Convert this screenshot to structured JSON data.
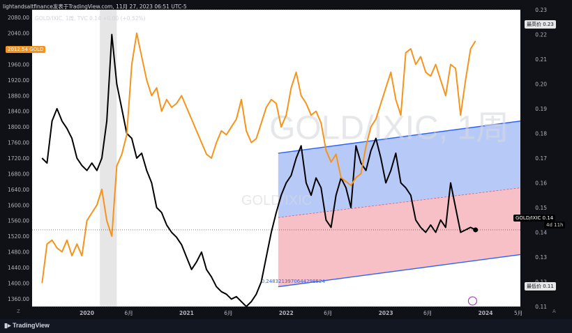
{
  "header": {
    "watermark_line": "lightandsaltfinance发表于TradingView.com, 11月 27, 2023 06:51 UTC-5",
    "symbol_line": "GOLD/IXIC, 1周, TVC  0.14  +0.00 (+0.52%)",
    "gold_tag_value": "2012.54",
    "gold_tag_label": "GOLD"
  },
  "watermark": {
    "big": "GOLD/IXIC, 1周",
    "small": "GOLD/IXIC"
  },
  "right_tags": {
    "high_label": "最高价",
    "high_value": "0.23",
    "low_label": "最低价",
    "low_value": "0.11",
    "current_label": "GOLD/IXIC",
    "current_value": "0.14",
    "countdown": "4d 11h"
  },
  "annotation": "0.2483213970644298524",
  "footer": {
    "brand": "TradingView",
    "left_corner": "Z",
    "right_corner": "A"
  },
  "colors": {
    "background": "#0f1117",
    "ratio_line": "#000000",
    "gold_line": "#f7931a",
    "channel_upper_fill": "#b7c9f7",
    "channel_lower_fill": "#f6c0c6",
    "channel_border": "#2962ff",
    "highlight_band": "#e6e6e6",
    "axis_text": "#b2b5be"
  },
  "chart_data": {
    "type": "line",
    "x_ticks": [
      "2020",
      "6月",
      "2021",
      "6月",
      "2022",
      "6月",
      "2023",
      "6月",
      "2024",
      "5月"
    ],
    "left_axis": {
      "label": "GOLD",
      "ticks": [
        1360,
        1400,
        1440,
        1480,
        1520,
        1560,
        1600,
        1640,
        1680,
        1720,
        1760,
        1800,
        1840,
        1880,
        1920,
        1960,
        2000,
        2040,
        2080
      ],
      "ylim": [
        1340,
        2100
      ]
    },
    "right_axis": {
      "label": "GOLD/IXIC",
      "ticks": [
        0.11,
        0.12,
        0.13,
        0.14,
        0.15,
        0.16,
        0.17,
        0.18,
        0.19,
        0.2,
        0.21,
        0.22,
        0.23
      ],
      "ylim": [
        0.11,
        0.23
      ]
    },
    "series": [
      {
        "name": "GOLD/IXIC",
        "axis": "right",
        "x": [
          2019.55,
          2019.6,
          2019.65,
          2019.7,
          2019.75,
          2019.8,
          2019.85,
          2019.9,
          2019.95,
          2020.0,
          2020.05,
          2020.1,
          2020.15,
          2020.2,
          2020.25,
          2020.3,
          2020.35,
          2020.4,
          2020.45,
          2020.5,
          2020.55,
          2020.6,
          2020.65,
          2020.7,
          2020.75,
          2020.8,
          2020.85,
          2020.9,
          2020.95,
          2021.0,
          2021.05,
          2021.1,
          2021.15,
          2021.2,
          2021.25,
          2021.3,
          2021.35,
          2021.4,
          2021.45,
          2021.5,
          2021.55,
          2021.6,
          2021.65,
          2021.7,
          2021.75,
          2021.8,
          2021.85,
          2021.9,
          2021.95,
          2022.0,
          2022.05,
          2022.1,
          2022.15,
          2022.2,
          2022.25,
          2022.3,
          2022.35,
          2022.4,
          2022.45,
          2022.5,
          2022.55,
          2022.6,
          2022.65,
          2022.7,
          2022.75,
          2022.8,
          2022.85,
          2022.9,
          2022.95,
          2023.0,
          2023.05,
          2023.1,
          2023.15,
          2023.2,
          2023.25,
          2023.3,
          2023.35,
          2023.4,
          2023.45,
          2023.5,
          2023.55,
          2023.6,
          2023.65,
          2023.7,
          2023.75,
          2023.8,
          2023.85,
          2023.9
        ],
        "values": [
          0.17,
          0.168,
          0.185,
          0.19,
          0.185,
          0.182,
          0.178,
          0.17,
          0.167,
          0.165,
          0.168,
          0.165,
          0.17,
          0.185,
          0.22,
          0.2,
          0.19,
          0.18,
          0.178,
          0.17,
          0.172,
          0.165,
          0.16,
          0.15,
          0.148,
          0.143,
          0.14,
          0.138,
          0.135,
          0.13,
          0.125,
          0.128,
          0.132,
          0.125,
          0.122,
          0.118,
          0.116,
          0.115,
          0.113,
          0.114,
          0.112,
          0.11,
          0.112,
          0.115,
          0.12,
          0.13,
          0.14,
          0.148,
          0.155,
          0.16,
          0.163,
          0.17,
          0.175,
          0.16,
          0.155,
          0.162,
          0.158,
          0.145,
          0.142,
          0.155,
          0.162,
          0.158,
          0.15,
          0.175,
          0.168,
          0.165,
          0.173,
          0.178,
          0.17,
          0.16,
          0.165,
          0.172,
          0.16,
          0.158,
          0.155,
          0.145,
          0.142,
          0.14,
          0.143,
          0.14,
          0.145,
          0.142,
          0.16,
          0.15,
          0.14,
          0.141,
          0.142,
          0.141
        ]
      },
      {
        "name": "GOLD",
        "axis": "left",
        "x": [
          2019.55,
          2019.6,
          2019.65,
          2019.7,
          2019.75,
          2019.8,
          2019.85,
          2019.9,
          2019.95,
          2020.0,
          2020.05,
          2020.1,
          2020.15,
          2020.2,
          2020.25,
          2020.3,
          2020.35,
          2020.4,
          2020.45,
          2020.5,
          2020.55,
          2020.6,
          2020.65,
          2020.7,
          2020.75,
          2020.8,
          2020.85,
          2020.9,
          2020.95,
          2021.0,
          2021.05,
          2021.1,
          2021.15,
          2021.2,
          2021.25,
          2021.3,
          2021.35,
          2021.4,
          2021.45,
          2021.5,
          2021.55,
          2021.6,
          2021.65,
          2021.7,
          2021.75,
          2021.8,
          2021.85,
          2021.9,
          2021.95,
          2022.0,
          2022.05,
          2022.1,
          2022.15,
          2022.2,
          2022.25,
          2022.3,
          2022.35,
          2022.4,
          2022.45,
          2022.5,
          2022.55,
          2022.6,
          2022.65,
          2022.7,
          2022.75,
          2022.8,
          2022.85,
          2022.9,
          2022.95,
          2023.0,
          2023.05,
          2023.1,
          2023.15,
          2023.2,
          2023.25,
          2023.3,
          2023.35,
          2023.4,
          2023.45,
          2023.5,
          2023.55,
          2023.6,
          2023.65,
          2023.7,
          2023.75,
          2023.8,
          2023.85,
          2023.9
        ],
        "values": [
          1400,
          1500,
          1510,
          1490,
          1480,
          1510,
          1470,
          1500,
          1470,
          1560,
          1580,
          1600,
          1640,
          1560,
          1520,
          1700,
          1730,
          1780,
          1960,
          2040,
          1980,
          1920,
          1880,
          1900,
          1840,
          1870,
          1850,
          1860,
          1880,
          1850,
          1820,
          1790,
          1760,
          1730,
          1720,
          1760,
          1790,
          1780,
          1800,
          1820,
          1870,
          1790,
          1760,
          1770,
          1810,
          1850,
          1870,
          1860,
          1800,
          1830,
          1900,
          1940,
          1880,
          1860,
          1830,
          1840,
          1810,
          1740,
          1710,
          1730,
          1670,
          1660,
          1650,
          1670,
          1680,
          1750,
          1800,
          1820,
          1860,
          1900,
          1940,
          1870,
          1830,
          1990,
          2000,
          1960,
          1980,
          1940,
          1930,
          1960,
          1920,
          1880,
          1960,
          1950,
          1830,
          1920,
          2000,
          2020
        ]
      }
    ]
  }
}
